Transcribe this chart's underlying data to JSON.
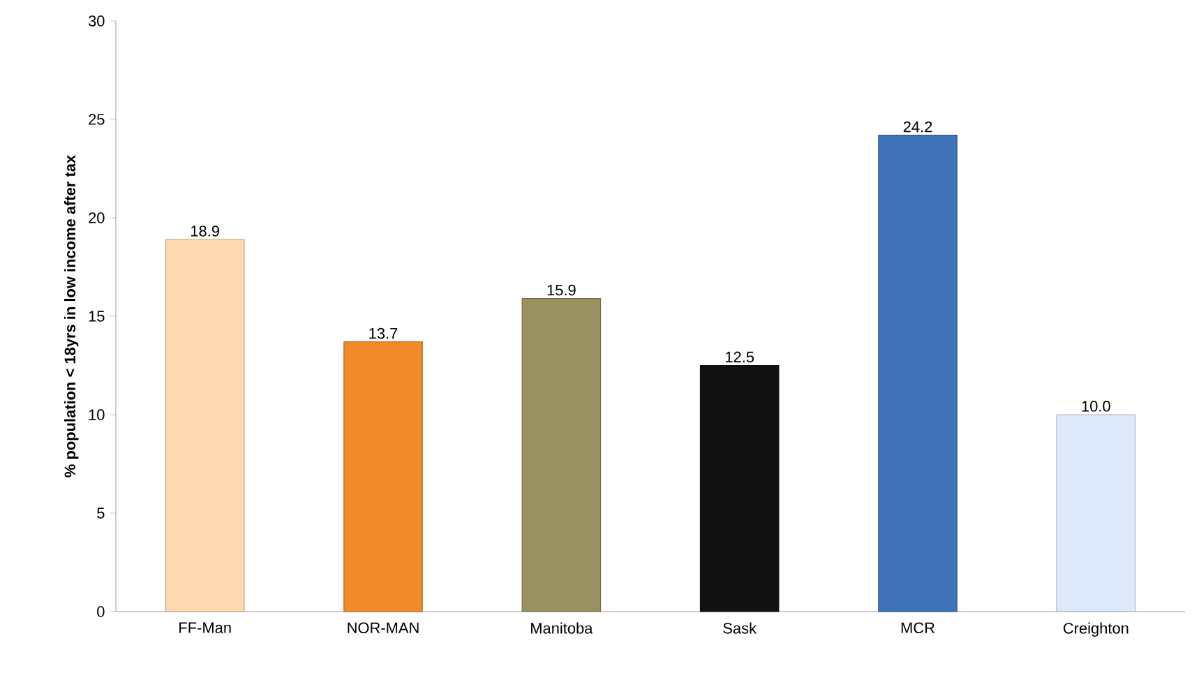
{
  "chart_data": {
    "type": "bar",
    "ylabel": "% population < 18yrs in low income after tax",
    "categories": [
      "FF-Man",
      "NOR-MAN",
      "Manitoba",
      "Sask",
      "MCR",
      "Creighton"
    ],
    "values": [
      18.9,
      13.7,
      15.9,
      12.5,
      24.2,
      10.0
    ],
    "value_labels": [
      "18.9",
      "13.7",
      "15.9",
      "12.5",
      "24.2",
      "10.0"
    ],
    "colors": [
      "#fcd9b0",
      "#f28a2a",
      "#9a9260",
      "#111111",
      "#3f75b8",
      "#dde9fa"
    ],
    "ylim": [
      0,
      30
    ],
    "yticks": [
      0,
      5,
      10,
      15,
      20,
      25,
      30
    ],
    "grid": false
  }
}
